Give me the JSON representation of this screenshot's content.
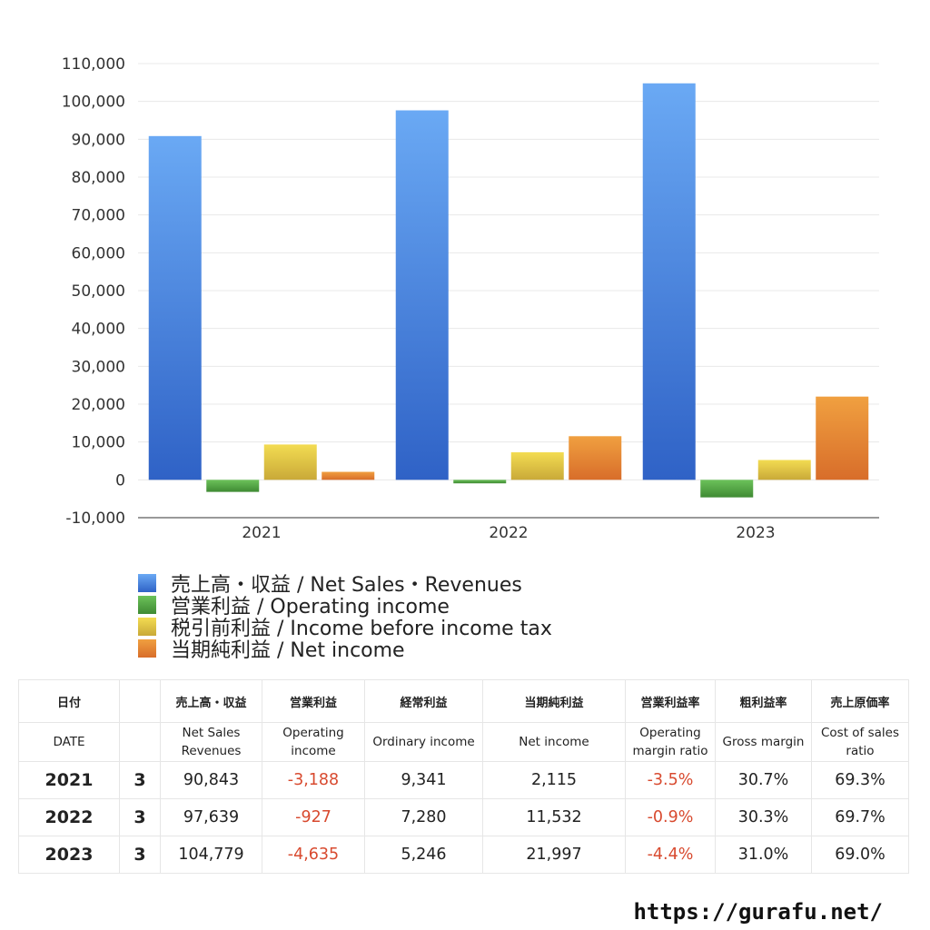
{
  "chart_data": {
    "type": "bar",
    "categories": [
      "2021",
      "2022",
      "2023"
    ],
    "series": [
      {
        "name": "売上高・収益 / Net Sales・Revenues",
        "values": [
          90843,
          97639,
          104779
        ],
        "color_top": "#6aa9f4",
        "color_bottom": "#2f62c6"
      },
      {
        "name": "営業利益 / Operating income",
        "values": [
          -3188,
          -927,
          -4635
        ],
        "color_top": "#6cc25a",
        "color_bottom": "#3f8a33"
      },
      {
        "name": "税引前利益 / Income before income tax",
        "values": [
          9341,
          7280,
          5246
        ],
        "color_top": "#f3dc52",
        "color_bottom": "#c9a938"
      },
      {
        "name": "当期純利益 / Net income",
        "values": [
          2115,
          11532,
          21997
        ],
        "color_top": "#f0a040",
        "color_bottom": "#d86d2a"
      }
    ],
    "ylim": [
      -10000,
      110000
    ],
    "yticks": [
      "110,000",
      "100,000",
      "90,000",
      "80,000",
      "70,000",
      "60,000",
      "50,000",
      "40,000",
      "30,000",
      "20,000",
      "10,000",
      "0",
      "-10,000"
    ],
    "ytick_values": [
      110000,
      100000,
      90000,
      80000,
      70000,
      60000,
      50000,
      40000,
      30000,
      20000,
      10000,
      0,
      -10000
    ],
    "grid": true,
    "legend_position": "bottom-left"
  },
  "table": {
    "header_jp": [
      "日付",
      "",
      "売上高・収益",
      "営業利益",
      "経常利益",
      "当期純利益",
      "営業利益率",
      "粗利益率",
      "売上原価率"
    ],
    "header_en": [
      "DATE",
      "",
      "Net Sales\nRevenues",
      "Operating\nincome",
      "Ordinary income",
      "Net income",
      "Operating\nmargin ratio",
      "Gross margin",
      "Cost of sales\nratio"
    ],
    "rows": [
      {
        "year": "2021",
        "month": "3",
        "sales": "90,843",
        "op_income": "-3,188",
        "ordinary": "9,341",
        "net": "2,115",
        "op_margin": "-3.5%",
        "gross": "30.7%",
        "cost_ratio": "69.3%"
      },
      {
        "year": "2022",
        "month": "3",
        "sales": "97,639",
        "op_income": "-927",
        "ordinary": "7,280",
        "net": "11,532",
        "op_margin": "-0.9%",
        "gross": "30.3%",
        "cost_ratio": "69.7%"
      },
      {
        "year": "2023",
        "month": "3",
        "sales": "104,779",
        "op_income": "-4,635",
        "ordinary": "5,246",
        "net": "21,997",
        "op_margin": "-4.4%",
        "gross": "31.0%",
        "cost_ratio": "69.0%"
      }
    ]
  },
  "footer": {
    "url": "https://gurafu.net/"
  }
}
